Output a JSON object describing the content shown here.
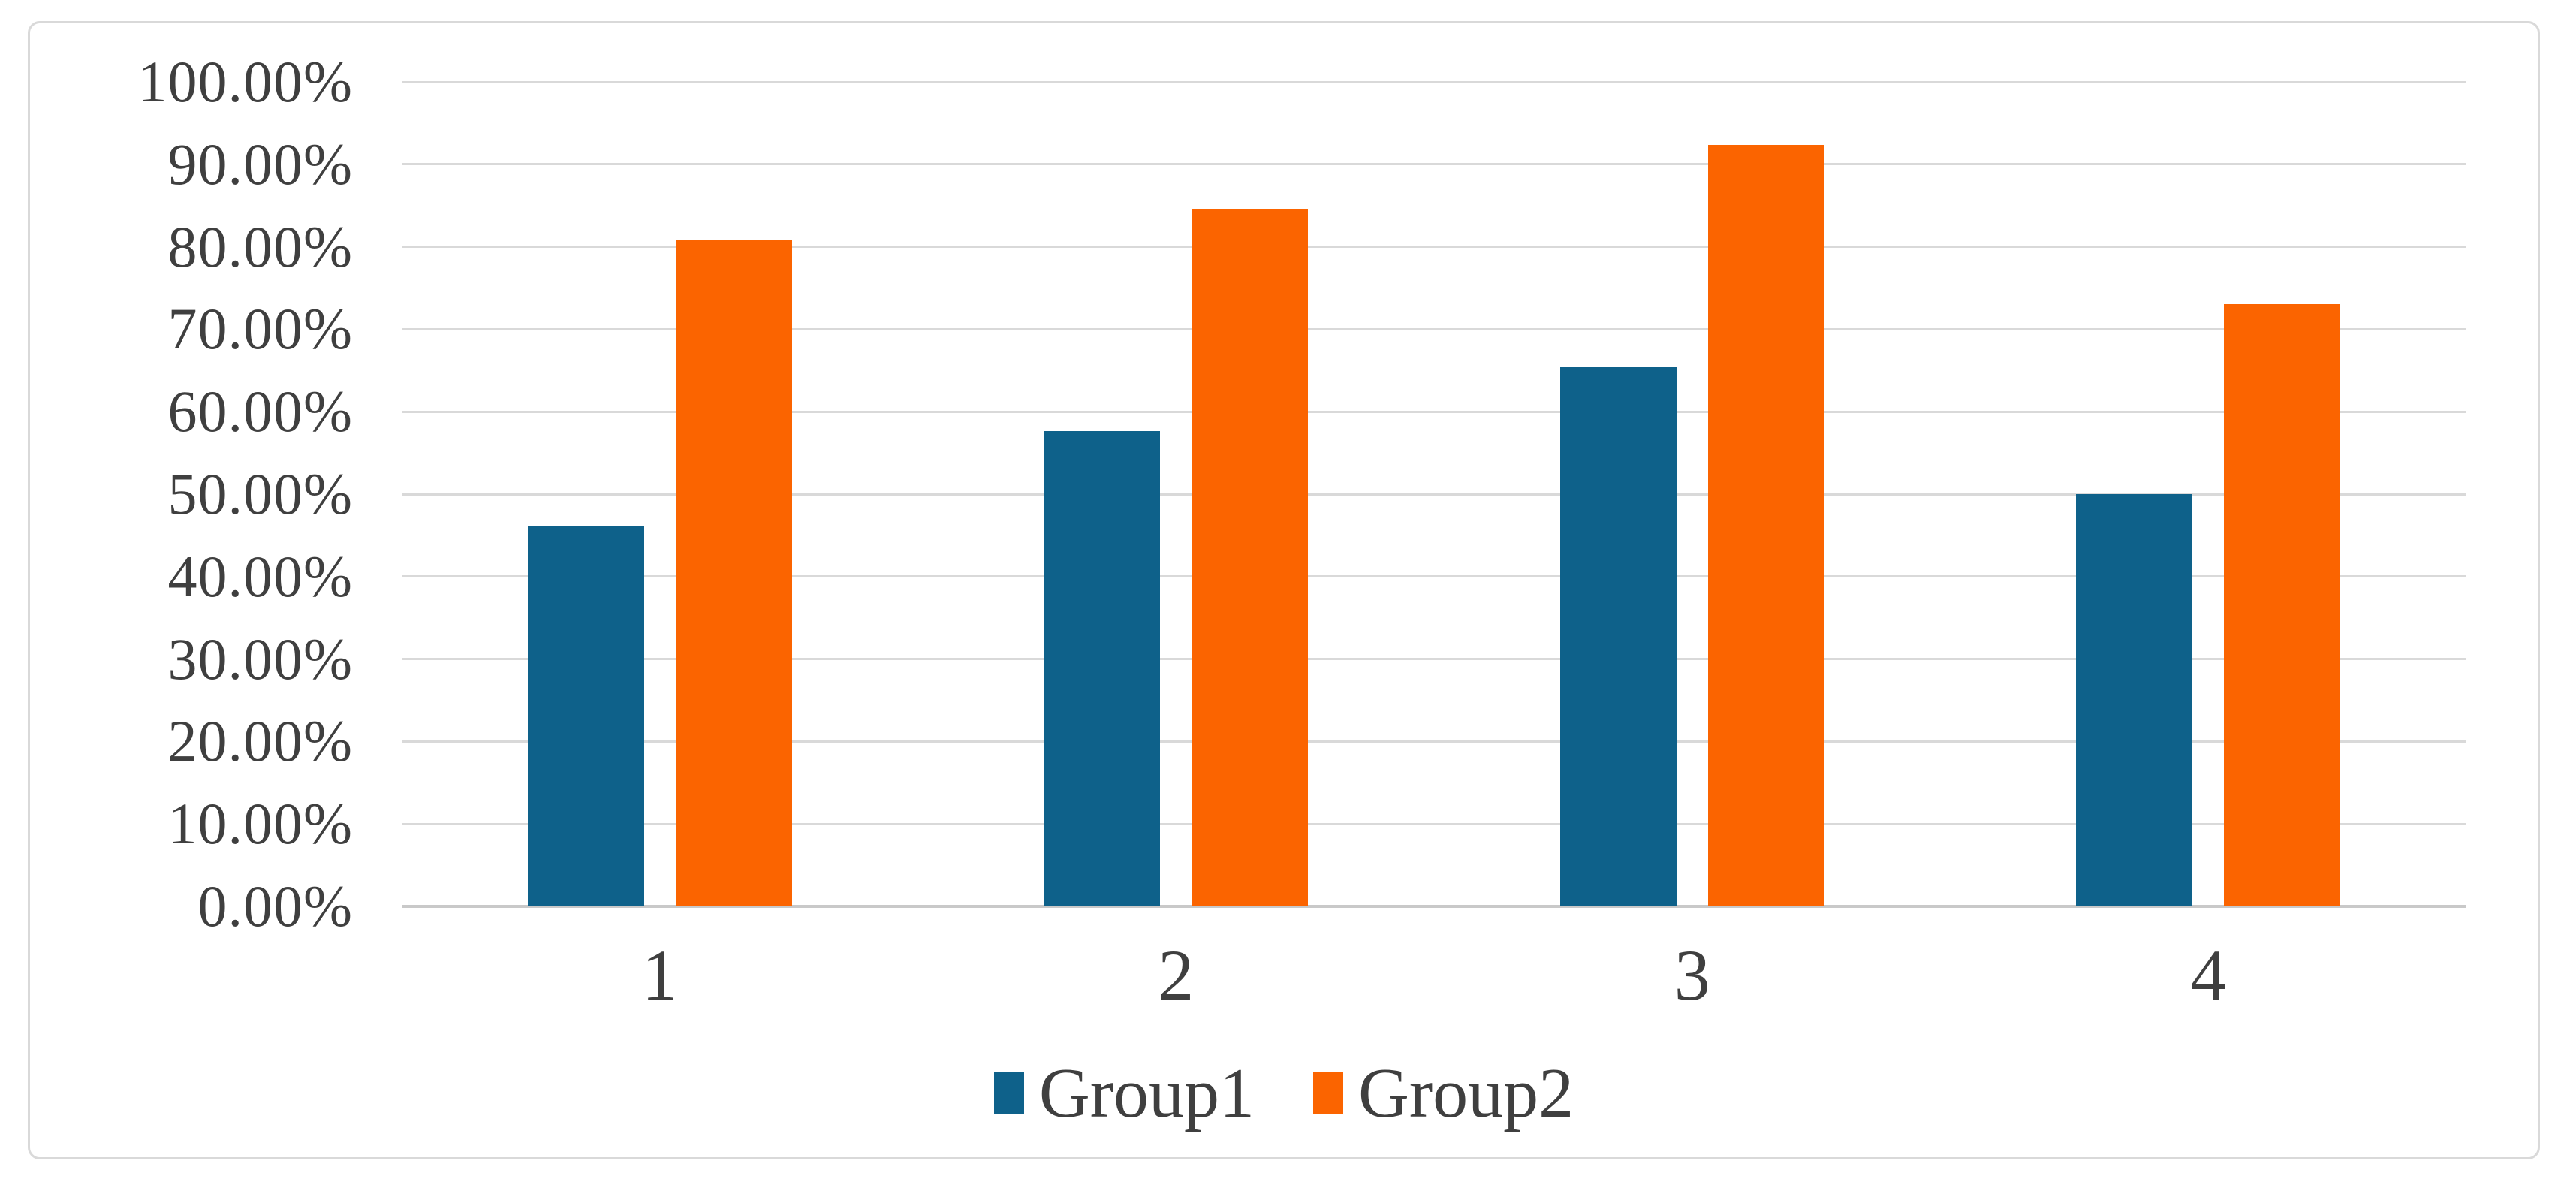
{
  "chart_data": {
    "type": "bar",
    "title": "",
    "xlabel": "",
    "ylabel": "",
    "categories": [
      "1",
      "2",
      "3",
      "4"
    ],
    "series": [
      {
        "name": "Group1",
        "color": "#0E618A",
        "values": [
          46.15,
          57.69,
          65.38,
          50.0
        ]
      },
      {
        "name": "Group2",
        "color": "#FB6400",
        "values": [
          80.77,
          84.62,
          92.31,
          73.08
        ]
      }
    ],
    "ylim": [
      0,
      100
    ],
    "ytick_step": 10,
    "ytick_labels": [
      "0.00%",
      "10.00%",
      "20.00%",
      "30.00%",
      "40.00%",
      "50.00%",
      "60.00%",
      "70.00%",
      "80.00%",
      "90.00%",
      "100.00%"
    ],
    "grid": "horizontal",
    "legend_position": "bottom",
    "colors": {
      "gridline": "#D9D9D9",
      "axis_line": "#C9C9C9",
      "frame_border": "#D9D9D9",
      "text": "#3F3F3F",
      "background": "#FFFFFF"
    }
  }
}
